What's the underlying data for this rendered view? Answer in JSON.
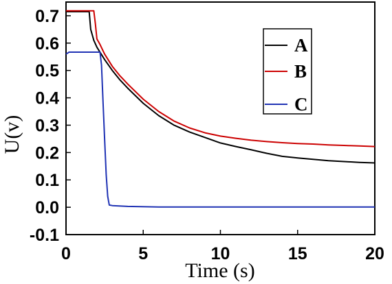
{
  "chart_data": {
    "type": "line",
    "title": "",
    "xlabel": "Time (s)",
    "ylabel": "U(v)",
    "xlim": [
      0,
      20
    ],
    "ylim": [
      -0.1,
      0.75
    ],
    "xticks": [
      0,
      5,
      10,
      15,
      20
    ],
    "xtick_labels": [
      "0",
      "5",
      "10",
      "15",
      "20"
    ],
    "yticks": [
      -0.1,
      0.0,
      0.1,
      0.2,
      0.3,
      0.4,
      0.5,
      0.6,
      0.7
    ],
    "ytick_labels": [
      "-0.1",
      "0.0",
      "0.1",
      "0.2",
      "0.3",
      "0.4",
      "0.5",
      "0.6",
      "0.7"
    ],
    "grid": false,
    "legend_position": "top-right",
    "series": [
      {
        "name": "A",
        "color": "#000000",
        "x": [
          0,
          1.5,
          1.6,
          1.8,
          2.0,
          2.5,
          3.0,
          3.5,
          4.0,
          5.0,
          6.0,
          7.0,
          8.0,
          9.0,
          10.0,
          11.0,
          12.0,
          13.0,
          14.0,
          15.0,
          16.0,
          17.0,
          18.0,
          19.0,
          20.0
        ],
        "y": [
          0.715,
          0.715,
          0.65,
          0.61,
          0.585,
          0.54,
          0.5,
          0.465,
          0.435,
          0.38,
          0.335,
          0.3,
          0.275,
          0.255,
          0.235,
          0.222,
          0.21,
          0.197,
          0.186,
          0.18,
          0.175,
          0.17,
          0.167,
          0.164,
          0.162
        ]
      },
      {
        "name": "B",
        "color": "#cc0000",
        "x": [
          0,
          1.8,
          1.9,
          2.0,
          2.2,
          2.5,
          3.0,
          3.5,
          4.0,
          5.0,
          6.0,
          7.0,
          8.0,
          9.0,
          10.0,
          11.0,
          12.0,
          13.0,
          14.0,
          15.0,
          16.0,
          17.0,
          18.0,
          19.0,
          20.0
        ],
        "y": [
          0.718,
          0.718,
          0.67,
          0.615,
          0.595,
          0.56,
          0.515,
          0.48,
          0.45,
          0.395,
          0.35,
          0.315,
          0.29,
          0.272,
          0.26,
          0.252,
          0.245,
          0.24,
          0.236,
          0.233,
          0.231,
          0.228,
          0.226,
          0.224,
          0.222
        ]
      },
      {
        "name": "C",
        "color": "#1f32b4",
        "x": [
          0,
          0.2,
          2.2,
          2.3,
          2.4,
          2.5,
          2.6,
          2.7,
          2.8,
          3.0,
          4.0,
          6.0,
          10.0,
          15.0,
          20.0
        ],
        "y": [
          0.56,
          0.567,
          0.567,
          0.52,
          0.38,
          0.25,
          0.12,
          0.04,
          0.008,
          0.006,
          0.003,
          0.001,
          0.001,
          0.001,
          0.001
        ]
      }
    ]
  }
}
